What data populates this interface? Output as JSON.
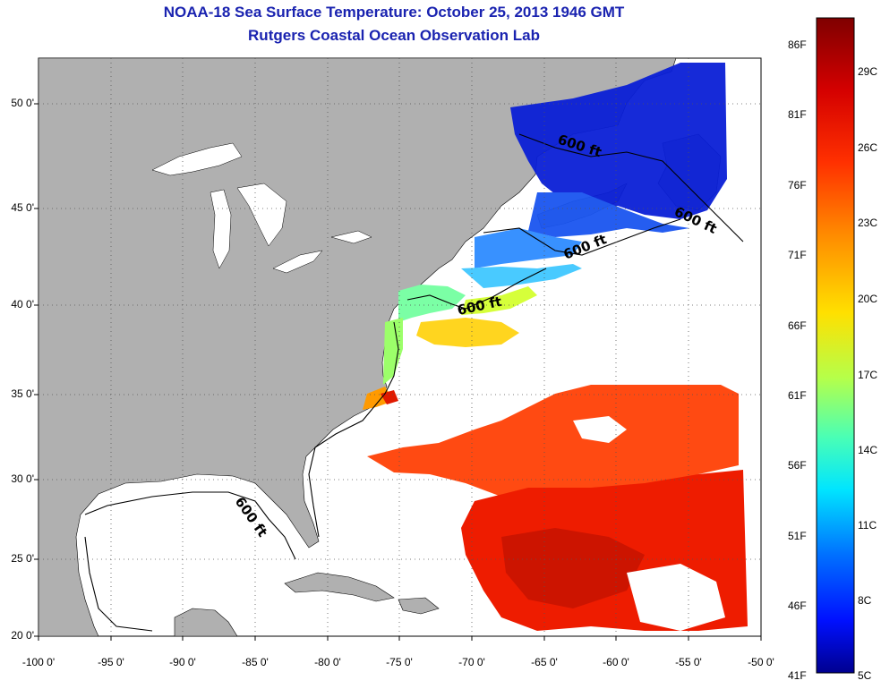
{
  "header": {
    "title": "NOAA-18 Sea Surface Temperature:  October 25, 2013 1946 GMT",
    "subtitle": "Rutgers Coastal Ocean Observation Lab"
  },
  "map": {
    "lat_labels": [
      "50 0'",
      "45 0'",
      "40 0'",
      "35 0'",
      "30 0'",
      "25 0'",
      "20 0'"
    ],
    "lon_labels": [
      "-100 0'",
      "-95 0'",
      "-90 0'",
      "-85 0'",
      "-80 0'",
      "-75 0'",
      "-70 0'",
      "-65 0'",
      "-60 0'",
      "-55 0'",
      "-50 0'"
    ],
    "isobath_labels": [
      "600 ft",
      "600 ft",
      "600 ft",
      "600 ft",
      "600 ft"
    ],
    "colors": {
      "land": "#b0b0b0",
      "ocean_nodata": "#ffffff",
      "grid": "#555555"
    }
  },
  "colorbar": {
    "fahrenheit_labels": [
      "86F",
      "81F",
      "76F",
      "71F",
      "66F",
      "61F",
      "56F",
      "51F",
      "46F",
      "41F"
    ],
    "celsius_labels": [
      "29C",
      "26C",
      "23C",
      "20C",
      "17C",
      "14C",
      "11C",
      "8C",
      "5C"
    ],
    "colors": [
      "#7f0000",
      "#ff0000",
      "#ff7f00",
      "#ffff00",
      "#7fff7f",
      "#00ffff",
      "#007fff",
      "#0000ff",
      "#00008f"
    ]
  }
}
